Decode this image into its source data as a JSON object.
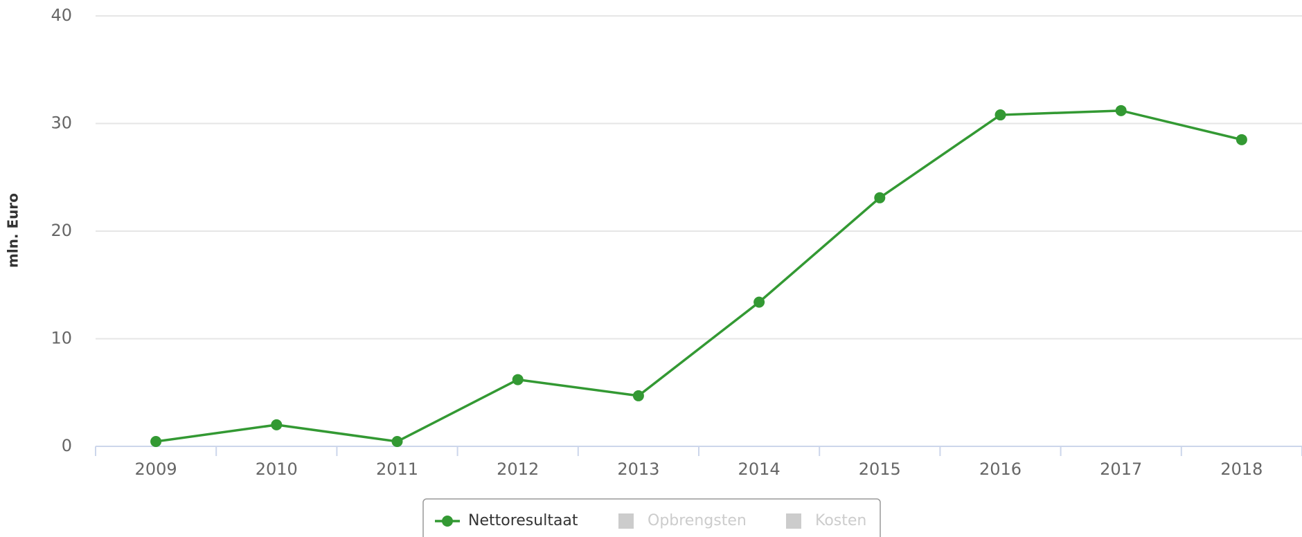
{
  "chart_data": {
    "type": "line",
    "y_label": "mln. Euro",
    "categories": [
      "2009",
      "2010",
      "2011",
      "2012",
      "2013",
      "2014",
      "2015",
      "2016",
      "2017",
      "2018"
    ],
    "series": [
      {
        "name": "Nettoresultaat",
        "color": "#339933",
        "visible": true,
        "values": [
          0.45,
          2.0,
          0.45,
          6.2,
          4.7,
          13.4,
          23.1,
          30.8,
          31.2,
          28.5
        ]
      },
      {
        "name": "Opbrengsten",
        "color": "#cccccc",
        "visible": false,
        "values": [
          null,
          null,
          null,
          null,
          null,
          null,
          null,
          null,
          null,
          null
        ]
      },
      {
        "name": "Kosten",
        "color": "#cccccc",
        "visible": false,
        "values": [
          null,
          null,
          null,
          null,
          null,
          null,
          null,
          null,
          null,
          null
        ]
      }
    ],
    "ylim": [
      0,
      40
    ],
    "yticks": [
      0,
      10,
      20,
      30,
      40
    ],
    "grid": true,
    "legend": "bottom"
  }
}
